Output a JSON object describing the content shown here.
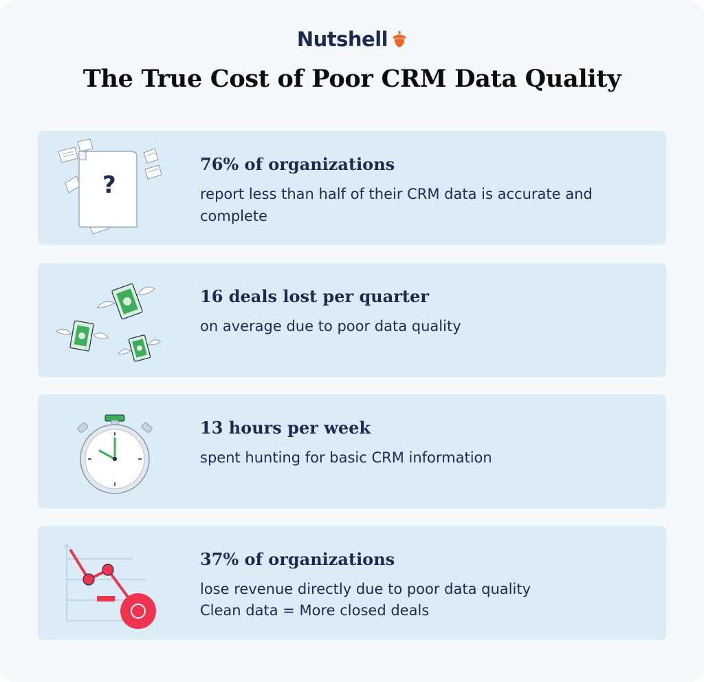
{
  "header": {
    "brand": "Nutshell",
    "title": "The True Cost of Poor CRM Data Quality"
  },
  "cards": [
    {
      "icon": "missing-document-icon",
      "stat": "76% of organizations",
      "desc": "report less than half of their CRM data is accurate and complete"
    },
    {
      "icon": "flying-money-icon",
      "stat": "16 deals lost per quarter",
      "desc": "on average due to poor data quality"
    },
    {
      "icon": "stopwatch-icon",
      "stat": "13 hours per week",
      "desc": "spent hunting for basic CRM information"
    },
    {
      "icon": "declining-chart-icon",
      "stat": "37% of organizations",
      "desc": "lose revenue directly due to poor data quality",
      "tagline": "Clean data = More closed deals"
    }
  ],
  "colors": {
    "navy": "#1c2a52",
    "card_bg": "#dcecf6",
    "page_bg": "#f5f9fc",
    "accent_orange": "#f26522",
    "money_green": "#3fae5c",
    "chart_red": "#f0334f"
  }
}
